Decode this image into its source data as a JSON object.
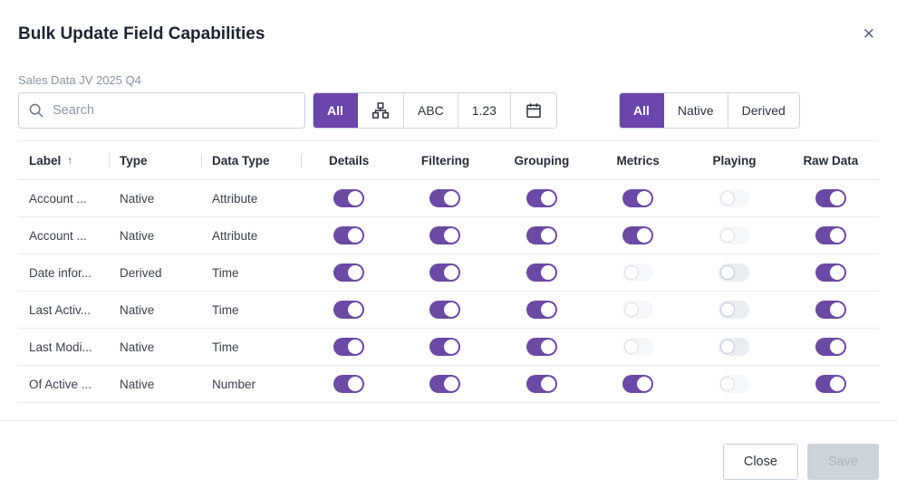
{
  "colors": {
    "accent": "#6C45AC",
    "toggle_on": "#6C49A4",
    "toggle_off_track": "#e9ecf1",
    "toggle_disabled_track": "#f5f7f9"
  },
  "modal": {
    "title": "Bulk Update Field Capabilities",
    "subtitle": "Sales Data JV 2025 Q4",
    "close_glyph": "✕"
  },
  "search": {
    "placeholder": "Search",
    "value": ""
  },
  "filters": {
    "data_type_group": [
      {
        "kind": "text",
        "label": "All",
        "selected": true,
        "name": "all"
      },
      {
        "kind": "icon",
        "icon": "hierarchy-icon",
        "selected": false,
        "name": "hierarchy"
      },
      {
        "kind": "text",
        "label": "ABC",
        "selected": false,
        "name": "abc"
      },
      {
        "kind": "text",
        "label": "1.23",
        "selected": false,
        "name": "numeric"
      },
      {
        "kind": "icon",
        "icon": "calendar-icon",
        "selected": false,
        "name": "date"
      }
    ],
    "origin_group": [
      {
        "kind": "text",
        "label": "All",
        "selected": true,
        "name": "all"
      },
      {
        "kind": "text",
        "label": "Native",
        "selected": false,
        "name": "native"
      },
      {
        "kind": "text",
        "label": "Derived",
        "selected": false,
        "name": "derived"
      }
    ]
  },
  "table": {
    "sort_indicator": "↑",
    "sorted_column": "Label",
    "text_columns": [
      "Label",
      "Type",
      "Data Type"
    ],
    "toggle_columns": [
      "Details",
      "Filtering",
      "Grouping",
      "Metrics",
      "Playing",
      "Raw Data"
    ],
    "rows": [
      {
        "label": "Account ...",
        "type": "Native",
        "data_type": "Attribute",
        "toggles": [
          "on",
          "on",
          "on",
          "on",
          "disabled",
          "on"
        ]
      },
      {
        "label": "Account ...",
        "type": "Native",
        "data_type": "Attribute",
        "toggles": [
          "on",
          "on",
          "on",
          "on",
          "disabled",
          "on"
        ]
      },
      {
        "label": "Date infor...",
        "type": "Derived",
        "data_type": "Time",
        "toggles": [
          "on",
          "on",
          "on",
          "disabled",
          "off",
          "on"
        ]
      },
      {
        "label": "Last Activ...",
        "type": "Native",
        "data_type": "Time",
        "toggles": [
          "on",
          "on",
          "on",
          "disabled",
          "off",
          "on"
        ]
      },
      {
        "label": "Last Modi...",
        "type": "Native",
        "data_type": "Time",
        "toggles": [
          "on",
          "on",
          "on",
          "disabled",
          "off",
          "on"
        ]
      },
      {
        "label": "Of Active ...",
        "type": "Native",
        "data_type": "Number",
        "toggles": [
          "on",
          "on",
          "on",
          "on",
          "disabled",
          "on"
        ]
      }
    ]
  },
  "footer": {
    "close_label": "Close",
    "save_label": "Save",
    "save_enabled": false
  }
}
